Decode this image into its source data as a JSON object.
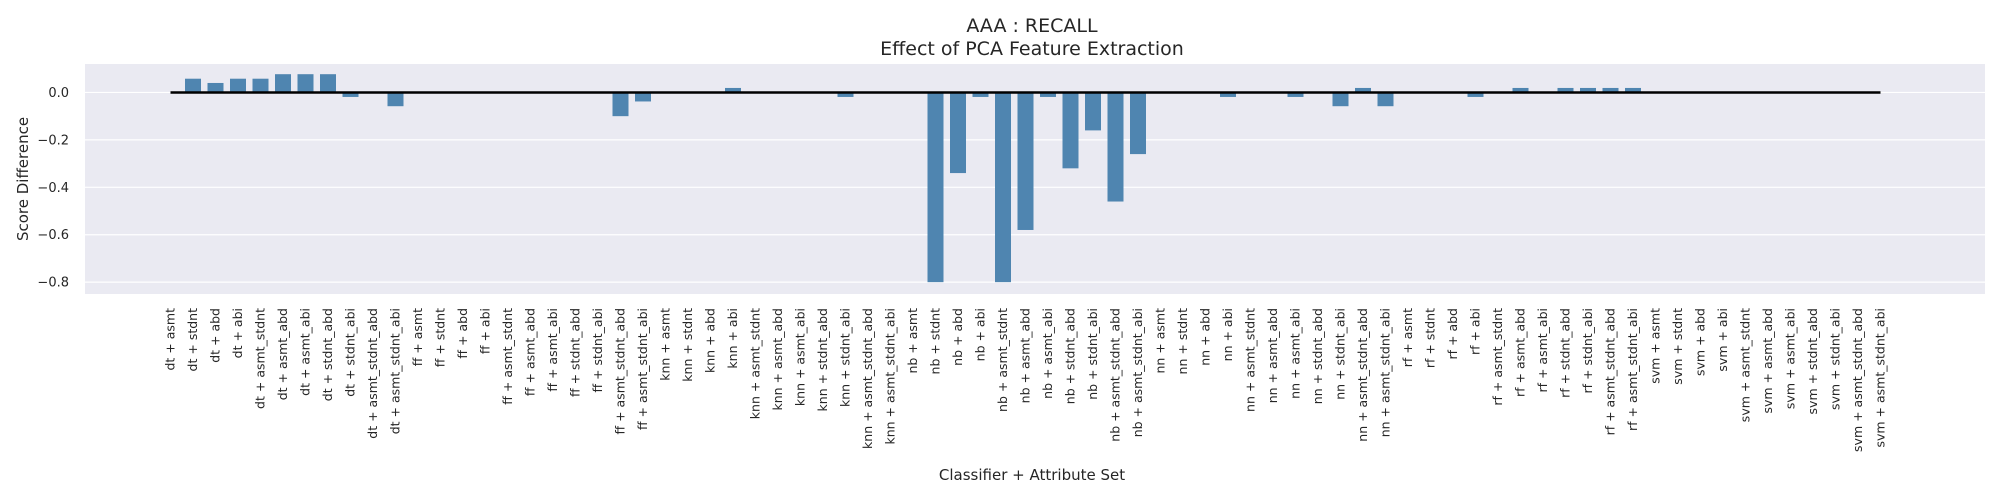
{
  "chart_data": {
    "type": "bar",
    "title": "AAA : RECALL",
    "subtitle": "Effect of PCA Feature Extraction",
    "xlabel": "Classifier + Attribute Set",
    "ylabel": "Score Difference",
    "ylim": [
      -0.85,
      0.12
    ],
    "yticks": [
      0.0,
      -0.2,
      -0.4,
      -0.6,
      -0.8
    ],
    "ytick_labels": [
      "0.0",
      "−0.2",
      "−0.4",
      "−0.6",
      "−0.8"
    ],
    "grid": true,
    "bar_color": "#4f85b0",
    "background_color": "#eaeaf2",
    "zero_line_color": "#000000",
    "categories": [
      "dt + asmt",
      "dt + stdnt",
      "dt + abd",
      "dt + abi",
      "dt + asmt_stdnt",
      "dt + asmt_abd",
      "dt + asmt_abi",
      "dt + stdnt_abd",
      "dt + stdnt_abi",
      "dt + asmt_stdnt_abd",
      "dt + asmt_stdnt_abi",
      "ff + asmt",
      "ff + stdnt",
      "ff + abd",
      "ff + abi",
      "ff + asmt_stdnt",
      "ff + asmt_abd",
      "ff + asmt_abi",
      "ff + stdnt_abd",
      "ff + stdnt_abi",
      "ff + asmt_stdnt_abd",
      "ff + asmt_stdnt_abi",
      "knn + asmt",
      "knn + stdnt",
      "knn + abd",
      "knn + abi",
      "knn + asmt_stdnt",
      "knn + asmt_abd",
      "knn + asmt_abi",
      "knn + stdnt_abd",
      "knn + stdnt_abi",
      "knn + asmt_stdnt_abd",
      "knn + asmt_stdnt_abi",
      "nb + asmt",
      "nb + stdnt",
      "nb + abd",
      "nb + abi",
      "nb + asmt_stdnt",
      "nb + asmt_abd",
      "nb + asmt_abi",
      "nb + stdnt_abd",
      "nb + stdnt_abi",
      "nb + asmt_stdnt_abd",
      "nb + asmt_stdnt_abi",
      "nn + asmt",
      "nn + stdnt",
      "nn + abd",
      "nn + abi",
      "nn + asmt_stdnt",
      "nn + asmt_abd",
      "nn + asmt_abi",
      "nn + stdnt_abd",
      "nn + stdnt_abi",
      "nn + asmt_stdnt_abd",
      "nn + asmt_stdnt_abi",
      "rf + asmt",
      "rf + stdnt",
      "rf + abd",
      "rf + abi",
      "rf + asmt_stdnt",
      "rf + asmt_abd",
      "rf + asmt_abi",
      "rf + stdnt_abd",
      "rf + stdnt_abi",
      "rf + asmt_stdnt_abd",
      "rf + asmt_stdnt_abi",
      "svm + asmt",
      "svm + stdnt",
      "svm + abd",
      "svm + abi",
      "svm + asmt_stdnt",
      "svm + asmt_abd",
      "svm + asmt_abi",
      "svm + stdnt_abd",
      "svm + stdnt_abi",
      "svm + asmt_stdnt_abd",
      "svm + asmt_stdnt_abi"
    ],
    "values": [
      0.0,
      0.058,
      0.04,
      0.058,
      0.058,
      0.077,
      0.077,
      0.077,
      -0.019,
      0.0,
      -0.058,
      0.0,
      0.0,
      0.0,
      0.0,
      0.0,
      0.0,
      0.0,
      0.0,
      0.0,
      -0.1,
      -0.038,
      0.0,
      0.0,
      0.0,
      0.019,
      0.0,
      0.0,
      0.0,
      0.0,
      -0.019,
      0.0,
      0.0,
      0.0,
      -0.8,
      -0.34,
      -0.019,
      -0.8,
      -0.58,
      -0.019,
      -0.32,
      -0.16,
      -0.46,
      -0.26,
      0.0,
      0.0,
      0.0,
      -0.019,
      0.0,
      0.0,
      -0.019,
      0.0,
      -0.058,
      0.019,
      -0.058,
      0.0,
      0.0,
      0.0,
      -0.019,
      0.0,
      0.019,
      0.0,
      0.019,
      0.019,
      0.019,
      0.019,
      0.0,
      0.0,
      0.0,
      0.0,
      0.0,
      0.0,
      0.0,
      0.0,
      0.0,
      0.0,
      0.0
    ]
  }
}
